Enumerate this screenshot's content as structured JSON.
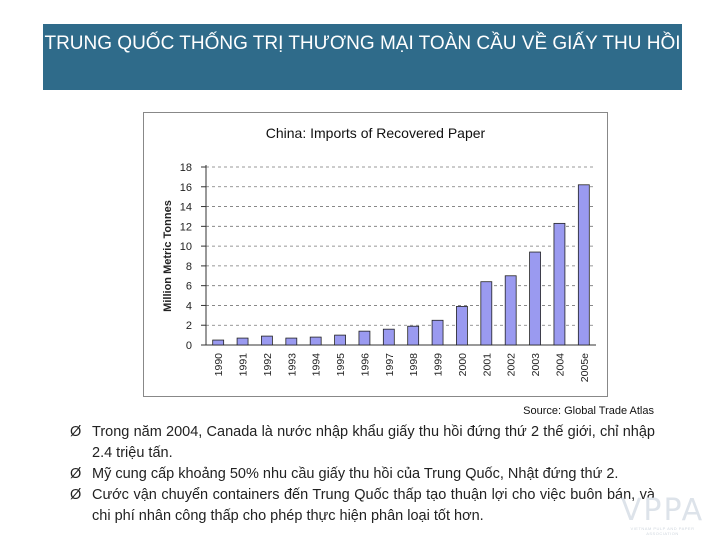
{
  "slide": {
    "title": "TRUNG QUỐC THỐNG TRỊ THƯƠNG MẠI TOÀN CẦU VỀ GIẤY THU HỒI",
    "source": "Source:  Global Trade  Atlas",
    "bullet_marker": "Ø",
    "bullets": [
      "Trong năm 2004, Canada là nước nhập khẩu giấy thu hồi đứng thứ 2 thế giới, chỉ nhập 2.4 triệu tấn.",
      "Mỹ cung cấp khoảng 50% nhu cầu giấy thu hồi của Trung Quốc, Nhật đứng thứ 2.",
      "Cước vận chuyển containers đến Trung Quốc thấp tạo thuận lợi cho việc buôn bán, và chi phí nhân công thấp cho phép thực hiện phân loại tốt hơn."
    ],
    "logo_text": "VPPA",
    "logo_subtext": "VIETNAM PULP AND PAPER ASSOCIATION"
  },
  "chart_data": {
    "type": "bar",
    "title": "China: Imports of Recovered Paper",
    "xlabel": "",
    "ylabel": "Million Metric Tonnes",
    "ylim": [
      0,
      18
    ],
    "yticks": [
      0,
      2,
      4,
      6,
      8,
      10,
      12,
      14,
      16,
      18
    ],
    "grid": true,
    "categories": [
      "1990",
      "1991",
      "1992",
      "1993",
      "1994",
      "1995",
      "1996",
      "1997",
      "1998",
      "1999",
      "2000",
      "2001",
      "2002",
      "2003",
      "2004",
      "2005e"
    ],
    "values": [
      0.5,
      0.7,
      0.9,
      0.7,
      0.8,
      1.0,
      1.4,
      1.6,
      1.9,
      2.5,
      3.9,
      6.4,
      7.0,
      9.4,
      12.3,
      16.2
    ],
    "bar_color": "#9a9af0"
  }
}
